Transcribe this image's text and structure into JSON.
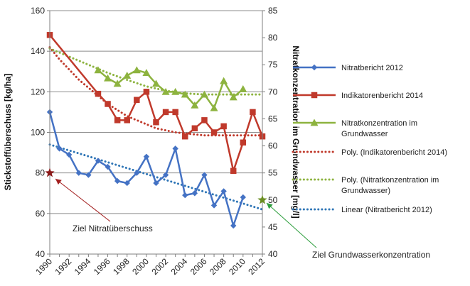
{
  "chart_data": {
    "type": "line",
    "x_ticks": [
      "1990",
      "1992",
      "1994",
      "1996",
      "1998",
      "2000",
      "2002",
      "2004",
      "2006",
      "2008",
      "2010",
      "2012"
    ],
    "xlim": [
      1990,
      2012
    ],
    "ylabel": "Stickstoffüberschuss [kg/ha]",
    "ylim": [
      40,
      160
    ],
    "y_ticks": [
      "40",
      "60",
      "80",
      "100",
      "120",
      "140",
      "160"
    ],
    "y2label": "Nitratkonzentration im Grundwasser [mg/l]",
    "y2lim": [
      40,
      85
    ],
    "y2_ticks": [
      "40",
      "45",
      "50",
      "55",
      "60",
      "65",
      "70",
      "75",
      "80",
      "85"
    ],
    "grid": "horizontal",
    "legend_position": "right",
    "series": [
      {
        "name": "Nitratbericht 2012",
        "axis": "left",
        "color": "#4472c4",
        "marker": "diamond",
        "x": [
          1990,
          1991,
          1992,
          1993,
          1994,
          1995,
          1996,
          1997,
          1998,
          1999,
          2000,
          2001,
          2002,
          2003,
          2004,
          2005,
          2006,
          2007,
          2008,
          2009,
          2010
        ],
        "y": [
          110,
          92,
          89,
          80,
          79,
          86,
          83,
          76,
          75,
          80,
          88,
          75,
          79,
          92,
          69,
          70,
          79,
          64,
          71,
          54,
          68
        ]
      },
      {
        "name": "Indikatorenbericht 2014",
        "axis": "left",
        "color": "#c0392b",
        "marker": "square",
        "x": [
          1990,
          1995,
          1996,
          1997,
          1998,
          1999,
          2000,
          2001,
          2002,
          2003,
          2004,
          2005,
          2006,
          2007,
          2008,
          2009,
          2010,
          2011,
          2012
        ],
        "y": [
          148,
          119,
          114,
          106,
          106,
          116,
          120,
          105,
          110,
          110,
          98,
          102,
          106,
          100,
          103,
          81,
          95,
          110,
          98
        ]
      },
      {
        "name": "Nitratkonzentration im Grundwasser",
        "axis": "right",
        "color": "#8db33f",
        "marker": "triangle",
        "x": [
          1995,
          1996,
          1997,
          1998,
          1999,
          2000,
          2001,
          2002,
          2003,
          2004,
          2005,
          2006,
          2007,
          2008,
          2009,
          2010
        ],
        "y": [
          74,
          72.5,
          71.5,
          73,
          74,
          73.5,
          71.5,
          70,
          70,
          69.5,
          67.5,
          69.5,
          67,
          72,
          69,
          70.5
        ]
      },
      {
        "name": "Poly. (Indikatorenbericht 2014)",
        "axis": "left",
        "color": "#c0392b",
        "style": "dotted",
        "trendline": true,
        "x": [
          1990,
          1991,
          1992,
          1993,
          1994,
          1995,
          1996,
          1997,
          1998,
          1999,
          2000,
          2001,
          2002,
          2003,
          2004,
          2005,
          2006,
          2007,
          2008,
          2009,
          2010,
          2011,
          2012
        ],
        "y": [
          142,
          136,
          131,
          126,
          122,
          118,
          114,
          111,
          108,
          106,
          104,
          102,
          101,
          100,
          99.5,
          99,
          98.5,
          98.5,
          98.5,
          98.5,
          98.5,
          98.5,
          98.5
        ]
      },
      {
        "name": "Poly. (Nitratkonzentration im Grundwasser)",
        "axis": "right",
        "color": "#8db33f",
        "style": "dotted",
        "trendline": true,
        "x": [
          1990,
          1992,
          1994,
          1996,
          1998,
          2000,
          2002,
          2004,
          2006,
          2008,
          2010,
          2012
        ],
        "y": [
          78,
          76.5,
          75,
          73.5,
          72.2,
          71,
          70.2,
          69.7,
          69.5,
          69.5,
          69.5,
          69.5
        ]
      },
      {
        "name": "Linear (Nitratbericht 2012)",
        "axis": "left",
        "color": "#2e75b6",
        "style": "dotted",
        "trendline": true,
        "x": [
          1990,
          2012
        ],
        "y": [
          94,
          62
        ]
      }
    ],
    "targets": [
      {
        "label": "Ziel  Nitratüberschuss",
        "axis": "left",
        "x": 1990,
        "y": 80,
        "marker": "star",
        "color": "#8b1a1a"
      },
      {
        "label": "Ziel Grundwasserkonzentration",
        "axis": "right",
        "x": 2012,
        "y": 50,
        "marker": "star",
        "color": "#6b8e23"
      }
    ]
  }
}
